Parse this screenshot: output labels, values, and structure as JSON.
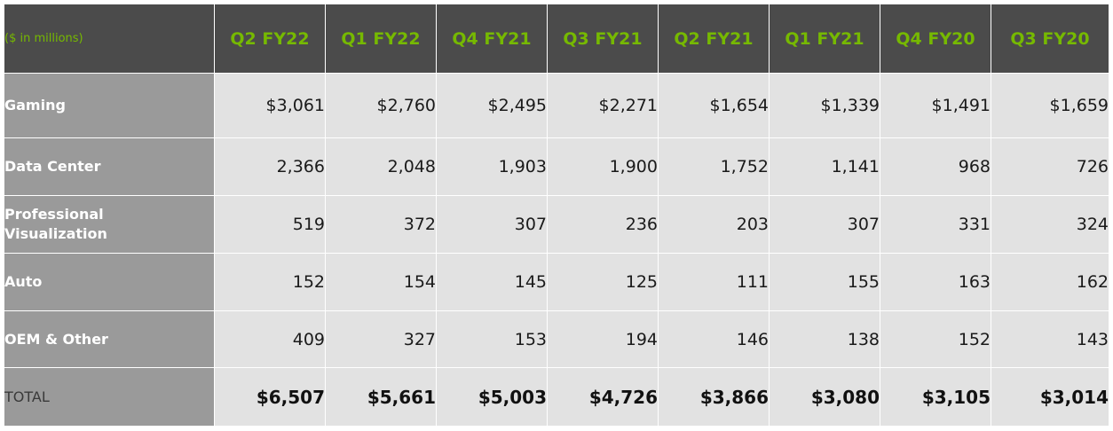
{
  "chart_data": {
    "type": "table",
    "unit_label": "($ in millions)",
    "columns": [
      "Q2 FY22",
      "Q1 FY22",
      "Q4 FY21",
      "Q3 FY21",
      "Q2 FY21",
      "Q1 FY21",
      "Q4 FY20",
      "Q3 FY20"
    ],
    "rows": [
      {
        "label_lines": [
          "Gaming"
        ],
        "values": [
          "$3,061",
          "$2,760",
          "$2,495",
          "$2,271",
          "$1,654",
          "$1,339",
          "$1,491",
          "$1,659"
        ]
      },
      {
        "label_lines": [
          "Data Center"
        ],
        "values": [
          "2,366",
          "2,048",
          "1,903",
          "1,900",
          "1,752",
          "1,141",
          "968",
          "726"
        ]
      },
      {
        "label_lines": [
          "Professional",
          "Visualization"
        ],
        "values": [
          "519",
          "372",
          "307",
          "236",
          "203",
          "307",
          "331",
          "324"
        ]
      },
      {
        "label_lines": [
          "Auto"
        ],
        "values": [
          "152",
          "154",
          "145",
          "125",
          "111",
          "155",
          "163",
          "162"
        ]
      },
      {
        "label_lines": [
          "OEM & Other"
        ],
        "values": [
          "409",
          "327",
          "153",
          "194",
          "146",
          "138",
          "152",
          "143"
        ]
      },
      {
        "label_lines": [
          "TOTAL"
        ],
        "values": [
          "$6,507",
          "$5,661",
          "$5,003",
          "$4,726",
          "$3,866",
          "$3,080",
          "$3,105",
          "$3,014"
        ]
      }
    ]
  },
  "colors": {
    "header_bg": "#4b4b4b",
    "header_text": "#76b900",
    "label_bg": "#9a9a9a",
    "cell_bg": "#e2e2e2"
  }
}
